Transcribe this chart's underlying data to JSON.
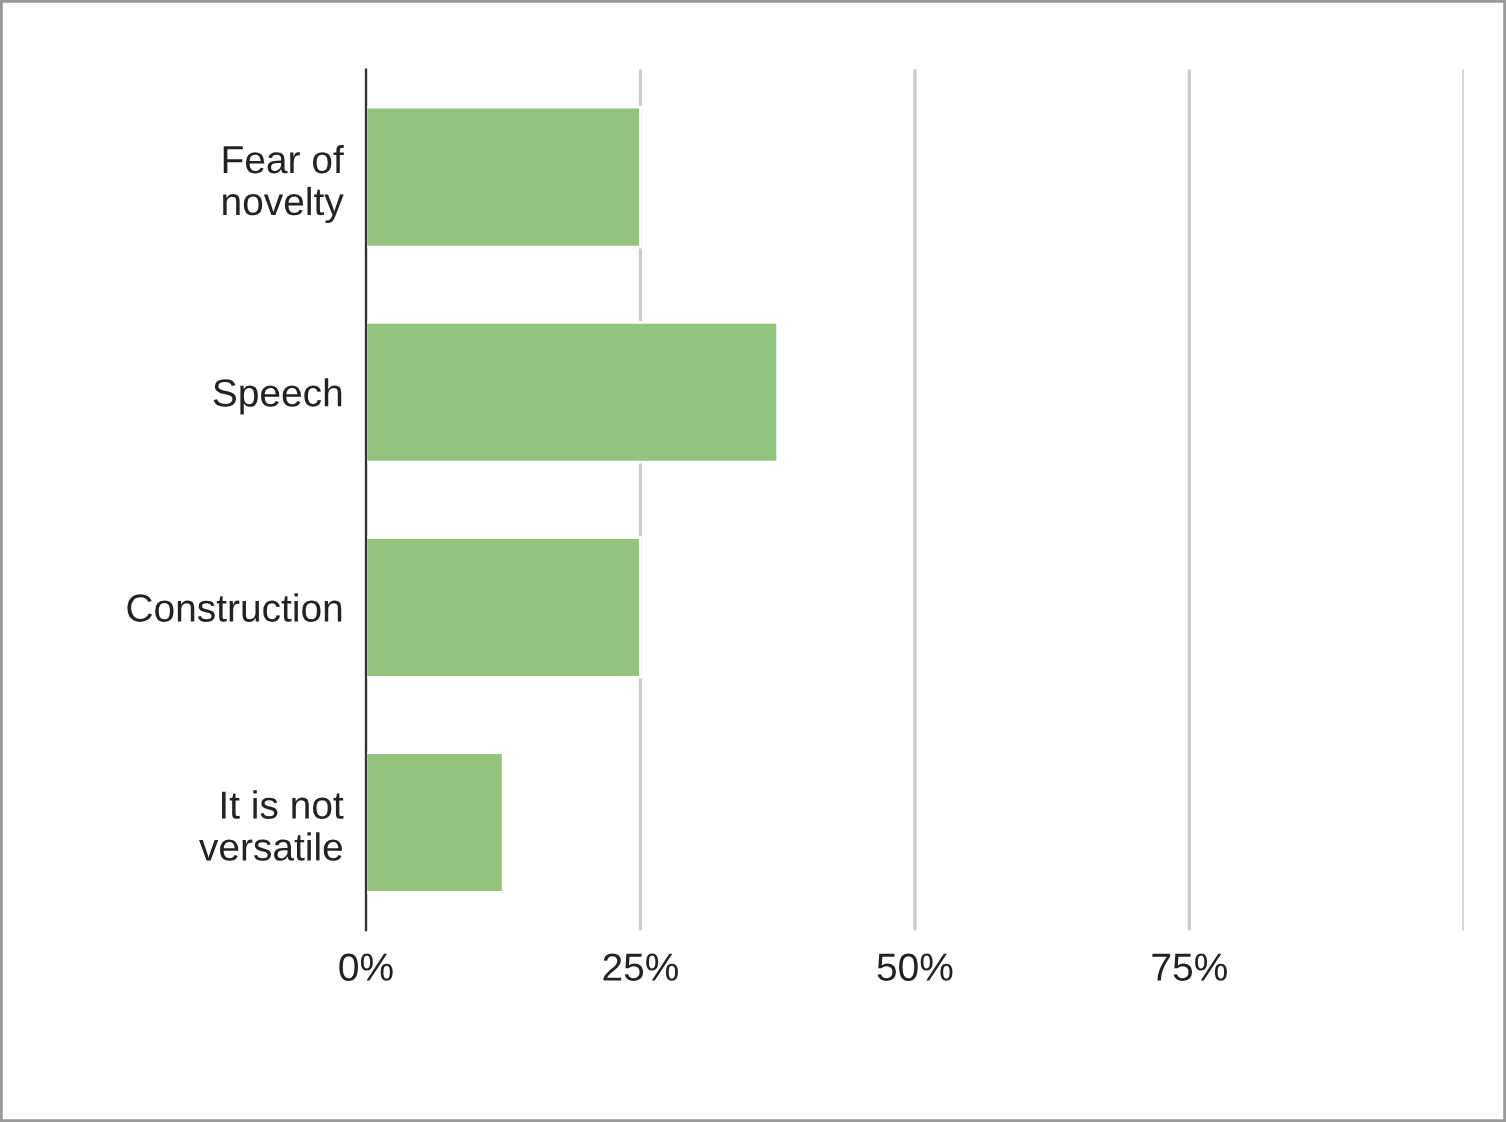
{
  "chart_data": {
    "type": "bar",
    "orientation": "horizontal",
    "categories": [
      "Fear of\nnovelty",
      "Speech",
      "Construction",
      "It is not\nversatile"
    ],
    "values": [
      25,
      37.5,
      25,
      12.5
    ],
    "color": "#93c47d",
    "xlim": [
      0,
      100
    ],
    "xticks": [
      {
        "value": 0,
        "label": "0%"
      },
      {
        "value": 25,
        "label": "25%"
      },
      {
        "value": 50,
        "label": "50%"
      },
      {
        "value": 75,
        "label": "75%"
      },
      {
        "value": 100,
        "label": null
      }
    ],
    "grid": "x",
    "legend": false
  }
}
